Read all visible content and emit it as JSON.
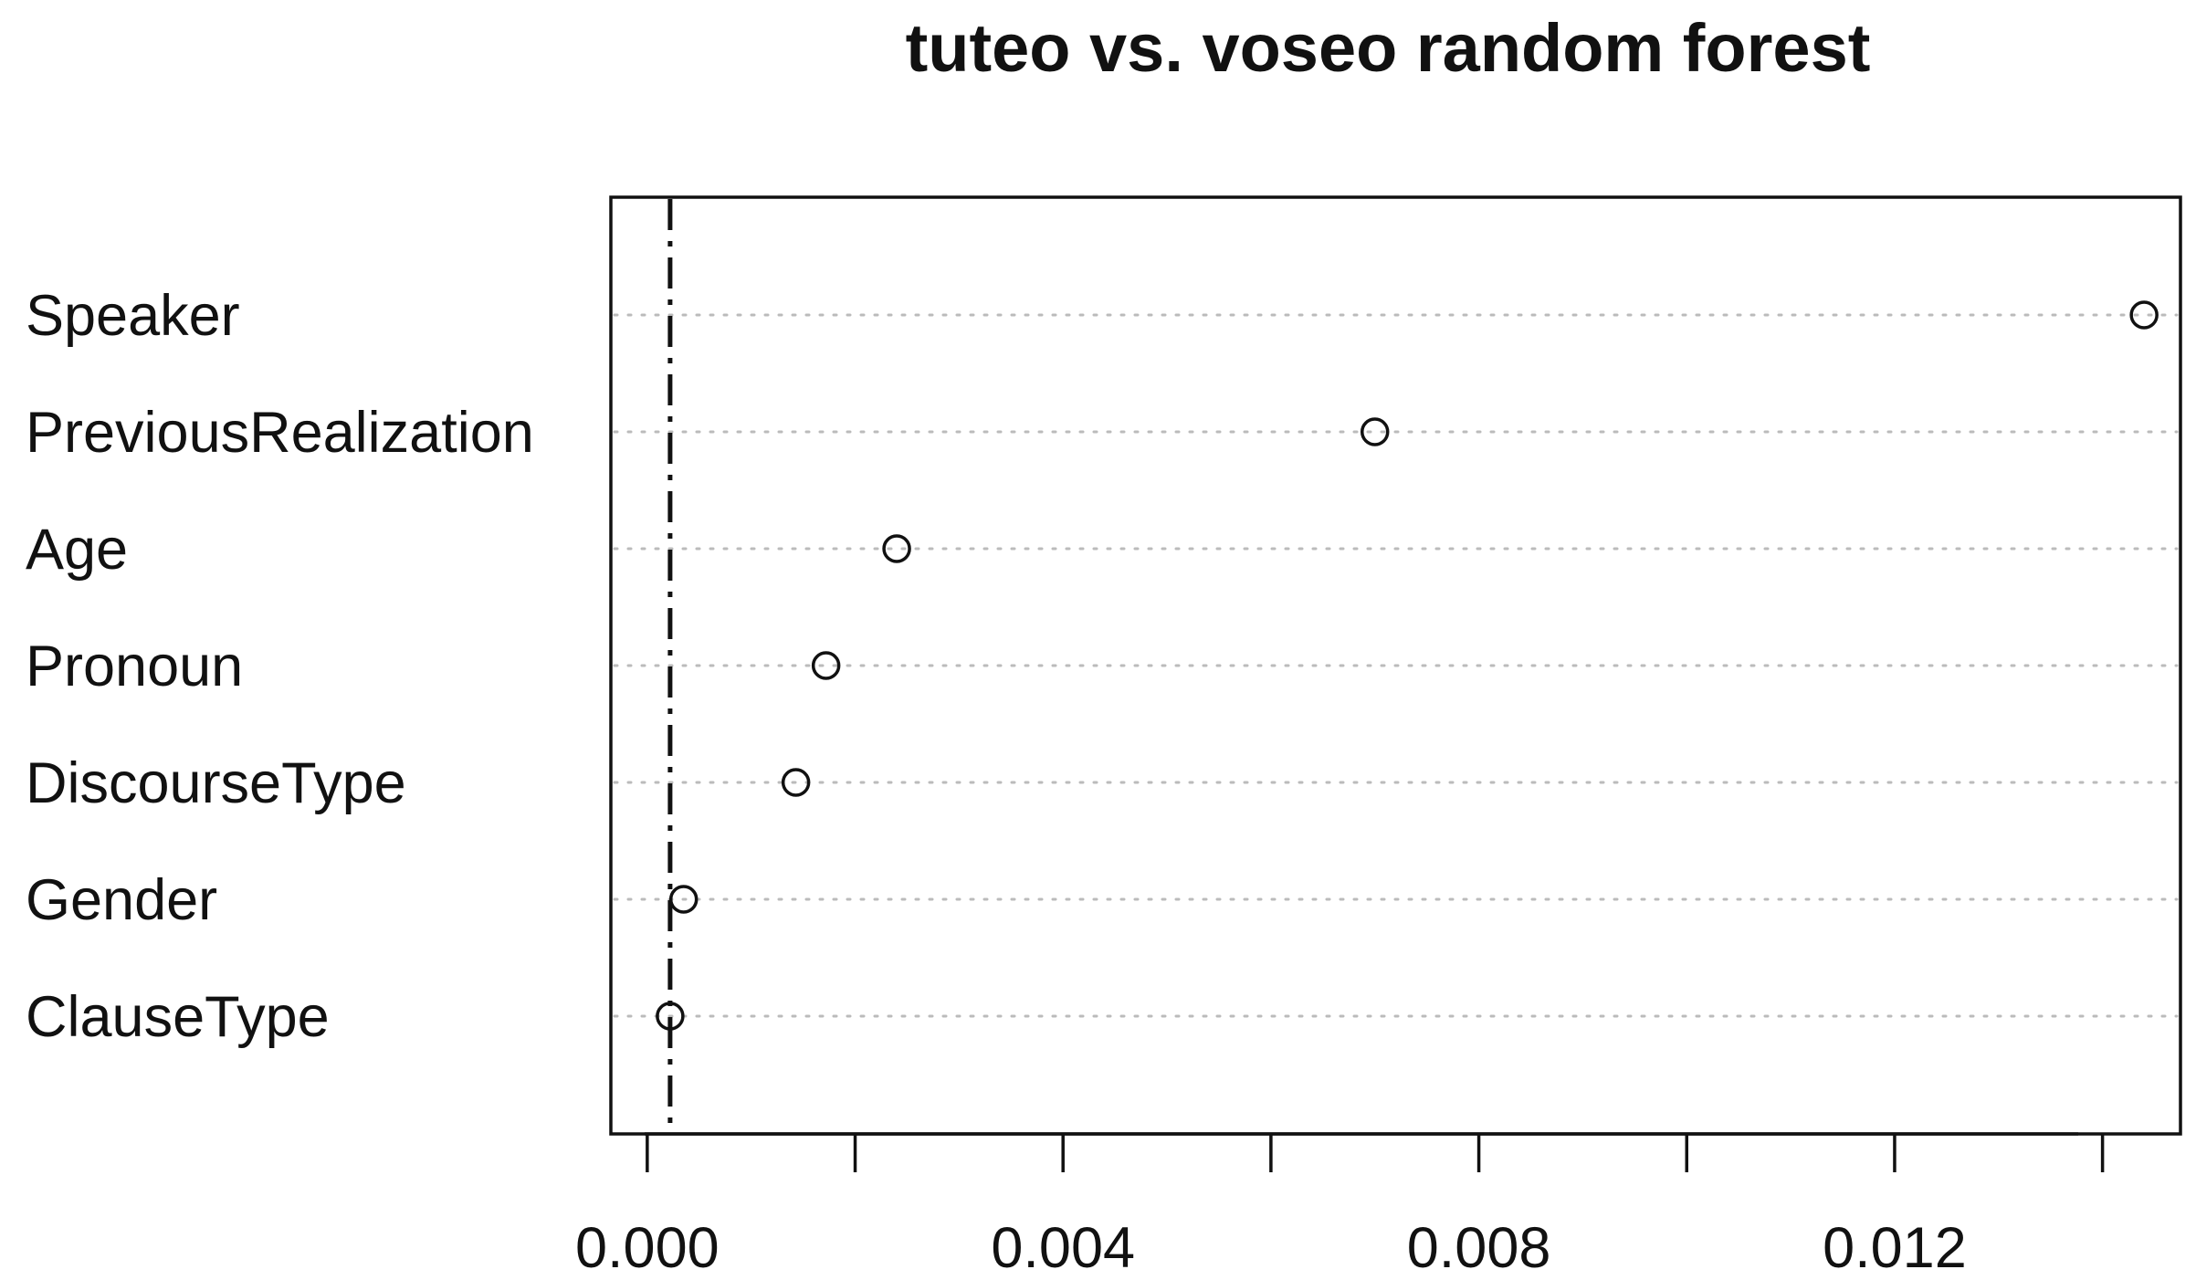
{
  "chart_data": {
    "type": "scatter",
    "title": "tuteo vs. voseo random forest",
    "xlabel": "",
    "ylabel": "",
    "categories": [
      "Speaker",
      "PreviousRealization",
      "Age",
      "Pronoun",
      "DiscourseType",
      "Gender",
      "ClauseType"
    ],
    "values": [
      0.0144,
      0.007,
      0.0024,
      0.00172,
      0.00143,
      0.00035,
      0.00022
    ],
    "xlim": [
      -0.00035,
      0.01475
    ],
    "x_ticks": [
      0.0,
      0.002,
      0.004,
      0.006,
      0.008,
      0.01,
      0.012,
      0.014
    ],
    "x_tick_labels": [
      {
        "value": 0.0,
        "label": "0.000"
      },
      {
        "value": 0.004,
        "label": "0.004"
      },
      {
        "value": 0.008,
        "label": "0.008"
      },
      {
        "value": 0.012,
        "label": "0.012"
      }
    ],
    "reference_line": {
      "value": 0.00022,
      "style": "dash-dot"
    },
    "grid": "dotted horizontal",
    "legend": "none",
    "colors": {
      "ink": "#111111",
      "grid": "#bbbbbb"
    }
  }
}
